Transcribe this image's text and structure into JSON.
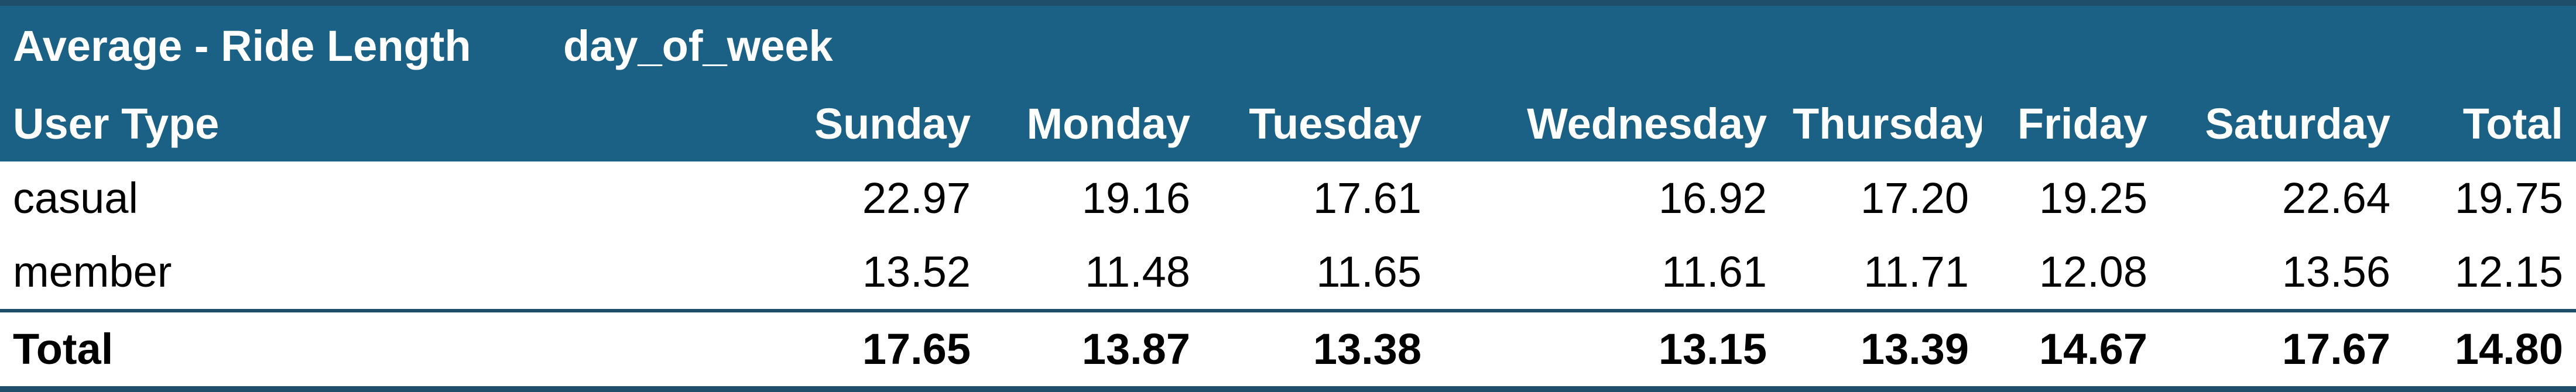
{
  "pivot": {
    "value_label": "Average - Ride Length",
    "column_field": "day_of_week",
    "row_field": "User Type",
    "columns": [
      "Sunday",
      "Monday",
      "Tuesday",
      "Wednesday",
      "Thursday",
      "Friday",
      "Saturday",
      "Total"
    ],
    "rows": [
      {
        "label": "casual",
        "values": [
          "22.97",
          "19.16",
          "17.61",
          "16.92",
          "17.20",
          "19.25",
          "22.64",
          "19.75"
        ]
      },
      {
        "label": "member",
        "values": [
          "13.52",
          "11.48",
          "11.65",
          "11.61",
          "11.71",
          "12.08",
          "13.56",
          "12.15"
        ]
      }
    ],
    "total": {
      "label": "Total",
      "values": [
        "17.65",
        "13.87",
        "13.38",
        "13.15",
        "13.39",
        "14.67",
        "17.67",
        "14.80"
      ]
    }
  },
  "colors": {
    "header_bg": "#1b6185",
    "rule": "#1f4e6b",
    "header_text": "#ffffff"
  }
}
